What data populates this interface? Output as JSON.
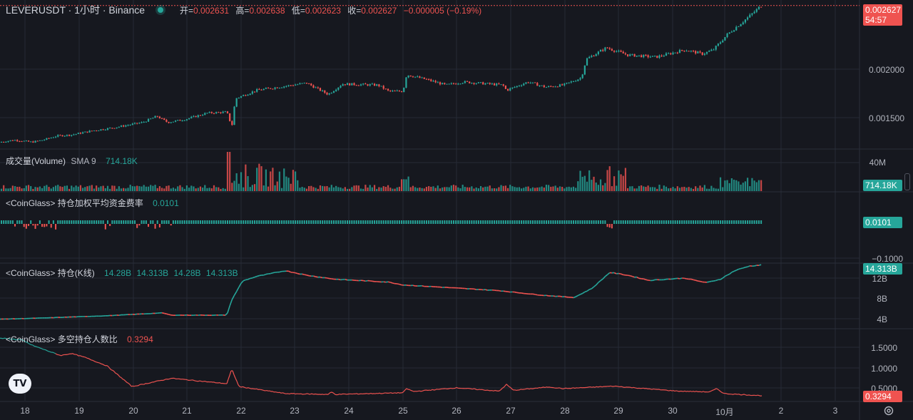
{
  "header": {
    "symbol": "LEVERUSDT · 1小时 · Binance",
    "ohlc": [
      {
        "label": "开=",
        "value": "0.002631"
      },
      {
        "label": "高=",
        "value": "0.002638"
      },
      {
        "label": "低=",
        "value": "0.002623"
      },
      {
        "label": "收=",
        "value": "0.002627"
      }
    ],
    "change": "−0.000005 (−0.19%)"
  },
  "price_axis": {
    "ticks": [
      "0.002000",
      "0.001500"
    ],
    "last_price": "0.002627",
    "countdown": "54:57"
  },
  "volume_pane": {
    "title": "成交量(Volume)",
    "sma_label": "SMA 9",
    "sma_value": "714.18K",
    "axis_tick": "40M",
    "tag": "714.18K"
  },
  "funding_pane": {
    "title": "<CoinGlass> 持仓加权平均资金费率",
    "value": "0.0101",
    "tag": "0.0101",
    "axis_tick": "−0.1000"
  },
  "oi_pane": {
    "title": "<CoinGlass> 持仓(K线)",
    "values": [
      "14.28B",
      "14.313B",
      "14.28B",
      "14.313B"
    ],
    "ticks": [
      "12B",
      "8B",
      "4B"
    ],
    "tag": "14.313B"
  },
  "ratio_pane": {
    "title": "<CoinGlass> 多空持仓人数比",
    "value": "0.3294",
    "ticks": [
      "1.5000",
      "1.0000",
      "0.5000"
    ],
    "tag": "0.3294"
  },
  "time_axis": [
    "18",
    "19",
    "20",
    "21",
    "22",
    "23",
    "24",
    "25",
    "26",
    "27",
    "28",
    "29",
    "30",
    "10月",
    "2",
    "3"
  ],
  "colors": {
    "up": "#26a69a",
    "down": "#ef5350",
    "bg": "#16181f",
    "grid": "#262a35"
  },
  "logo_text": "TV",
  "icons": {
    "settings": "gear-icon",
    "status": "status-dot-icon"
  },
  "chart_data": [
    {
      "type": "candlestick",
      "name": "LEVERUSDT 1h",
      "x_range": [
        "18",
        "10月 1"
      ],
      "ylim": [
        0.00125,
        0.00268
      ],
      "close_path": [
        [
          0,
          0.00131
        ],
        [
          20,
          0.00133
        ],
        [
          45,
          0.00131
        ],
        [
          60,
          0.00133
        ],
        [
          80,
          0.00137
        ],
        [
          100,
          0.00138
        ],
        [
          130,
          0.00142
        ],
        [
          160,
          0.00145
        ],
        [
          200,
          0.0015
        ],
        [
          220,
          0.00156
        ],
        [
          235,
          0.0015
        ],
        [
          260,
          0.00153
        ],
        [
          290,
          0.00159
        ],
        [
          318,
          0.0016
        ],
        [
          325,
          0.00146
        ],
        [
          330,
          0.00173
        ],
        [
          360,
          0.00181
        ],
        [
          400,
          0.00185
        ],
        [
          430,
          0.00188
        ],
        [
          460,
          0.00177
        ],
        [
          480,
          0.00187
        ],
        [
          530,
          0.00186
        ],
        [
          545,
          0.0018
        ],
        [
          565,
          0.0018
        ],
        [
          570,
          0.00196
        ],
        [
          600,
          0.00191
        ],
        [
          625,
          0.00186
        ],
        [
          650,
          0.00189
        ],
        [
          705,
          0.00186
        ],
        [
          710,
          0.00181
        ],
        [
          740,
          0.00189
        ],
        [
          765,
          0.00184
        ],
        [
          790,
          0.00186
        ],
        [
          815,
          0.00193
        ],
        [
          822,
          0.00211
        ],
        [
          850,
          0.00222
        ],
        [
          880,
          0.00215
        ],
        [
          920,
          0.00213
        ],
        [
          960,
          0.0022
        ],
        [
          985,
          0.00216
        ],
        [
          1000,
          0.0022
        ],
        [
          1020,
          0.00235
        ],
        [
          1050,
          0.00252
        ],
        [
          1068,
          0.00263
        ]
      ]
    },
    {
      "type": "bar",
      "name": "成交量(Volume)",
      "ylim": [
        0,
        40000000
      ]
    },
    {
      "type": "bar",
      "name": "持仓加权平均资金费率",
      "ylim": [
        -0.1,
        0.05
      ],
      "values": [
        0.0101
      ]
    },
    {
      "type": "line",
      "name": "持仓(K线)",
      "ylim": [
        2000000000,
        16000000000
      ],
      "path": [
        [
          0,
          4800000000.0
        ],
        [
          60,
          5000000000.0
        ],
        [
          150,
          5400000000.0
        ],
        [
          228,
          5900000000.0
        ],
        [
          240,
          5500000000.0
        ],
        [
          318,
          5500000000.0
        ],
        [
          325,
          8200000000.0
        ],
        [
          340,
          11500000000.0
        ],
        [
          360,
          12300000000.0
        ],
        [
          400,
          13300000000.0
        ],
        [
          430,
          12500000000.0
        ],
        [
          470,
          11800000000.0
        ],
        [
          545,
          11300000000.0
        ],
        [
          565,
          10800000000.0
        ],
        [
          620,
          10400000000.0
        ],
        [
          700,
          9800000000.0
        ],
        [
          760,
          9000000000.0
        ],
        [
          805,
          8600000000.0
        ],
        [
          830,
          10200000000.0
        ],
        [
          855,
          13000000000.0
        ],
        [
          880,
          12500000000.0
        ],
        [
          910,
          11600000000.0
        ],
        [
          960,
          12000000000.0
        ],
        [
          990,
          11200000000.0
        ],
        [
          1010,
          11800000000.0
        ],
        [
          1030,
          13300000000.0
        ],
        [
          1050,
          14100000000.0
        ],
        [
          1068,
          14310000000.0
        ]
      ]
    },
    {
      "type": "line",
      "name": "多空持仓人数比",
      "ylim": [
        0.25,
        1.85
      ],
      "path": [
        [
          0,
          1.72
        ],
        [
          30,
          1.68
        ],
        [
          45,
          1.55
        ],
        [
          85,
          1.3
        ],
        [
          100,
          1.35
        ],
        [
          120,
          1.25
        ],
        [
          150,
          1.05
        ],
        [
          185,
          0.55
        ],
        [
          240,
          0.75
        ],
        [
          318,
          0.62
        ],
        [
          325,
          0.97
        ],
        [
          335,
          0.55
        ],
        [
          400,
          0.38
        ],
        [
          460,
          0.36
        ],
        [
          465,
          0.42
        ],
        [
          470,
          0.36
        ],
        [
          565,
          0.4
        ],
        [
          570,
          0.5
        ],
        [
          580,
          0.43
        ],
        [
          640,
          0.52
        ],
        [
          700,
          0.44
        ],
        [
          710,
          0.6
        ],
        [
          720,
          0.46
        ],
        [
          770,
          0.54
        ],
        [
          790,
          0.5
        ],
        [
          860,
          0.56
        ],
        [
          950,
          0.44
        ],
        [
          995,
          0.42
        ],
        [
          1005,
          0.5
        ],
        [
          1015,
          0.38
        ],
        [
          1068,
          0.33
        ]
      ]
    }
  ]
}
